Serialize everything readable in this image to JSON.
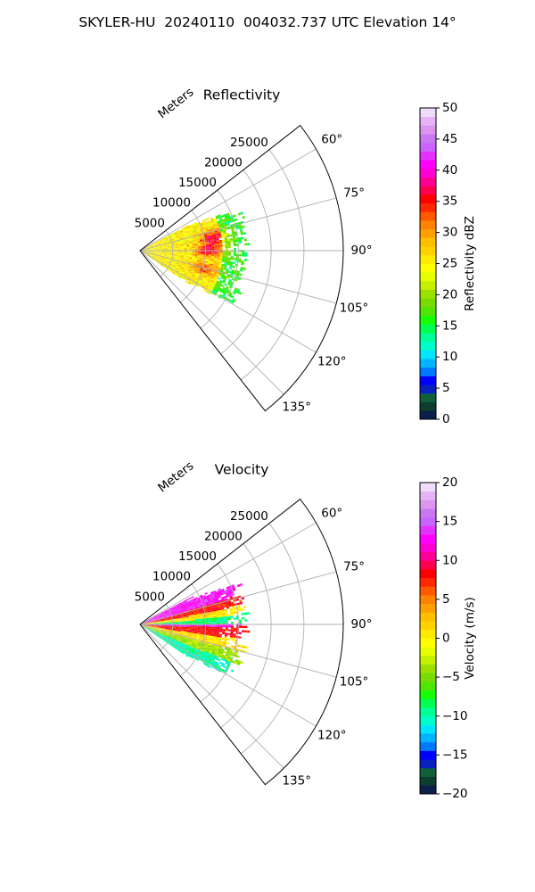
{
  "figure": {
    "title": "SKYLER-HU  20240110  004032.737 UTC Elevation 14°"
  },
  "chart_data": [
    {
      "type": "heatmap",
      "projection": "polar-sector",
      "title": "Reflectivity",
      "r_label": "Meters",
      "r_ticks": [
        5000,
        10000,
        15000,
        20000,
        25000
      ],
      "r_tick_labels": [
        "5000",
        "10000",
        "15000",
        "20000",
        "25000"
      ],
      "rlim": [
        0,
        31000
      ],
      "theta_ticks": [
        60,
        75,
        90,
        105,
        120,
        135
      ],
      "theta_tick_labels": [
        "60°",
        "75°",
        "90°",
        "105°",
        "120°",
        "135°"
      ],
      "theta_range_deg": [
        52,
        142
      ],
      "grid": true,
      "colorbar": {
        "label": "Reflectivity dBZ",
        "range": [
          0,
          50
        ],
        "ticks": [
          0,
          5,
          10,
          15,
          20,
          25,
          30,
          35,
          40,
          45,
          50
        ],
        "tick_labels": [
          "0",
          "5",
          "10",
          "15",
          "20",
          "25",
          "30",
          "35",
          "40",
          "45",
          "50"
        ],
        "colors": [
          "#0a1f4a",
          "#0c3d2e",
          "#11603a",
          "#0a1fbf",
          "#0000ff",
          "#0078ff",
          "#00b4ff",
          "#00e5ff",
          "#00ffc8",
          "#00ff96",
          "#00ff50",
          "#14ff00",
          "#50e600",
          "#78dc00",
          "#9be100",
          "#c3f000",
          "#e6ff00",
          "#ffff00",
          "#ffeb00",
          "#ffd200",
          "#ffbe00",
          "#ffa000",
          "#ff8200",
          "#ff5a00",
          "#ff2800",
          "#ff0000",
          "#ff0050",
          "#ff0096",
          "#ff00d2",
          "#ff00ff",
          "#e632ff",
          "#c864ff",
          "#c878f0",
          "#dc96f0",
          "#e6b4f5",
          "#f0dcfa"
        ]
      },
      "field_summary": {
        "data_sector_deg": [
          62,
          124
        ],
        "max_range_m": 16000,
        "background_dbz": 25,
        "outer_band_dbz": 16,
        "cores": [
          {
            "theta_deg": 80,
            "r_m": 11500,
            "dbz": 37
          },
          {
            "theta_deg": 90,
            "r_m": 10500,
            "dbz": 37
          },
          {
            "theta_deg": 106,
            "r_m": 10000,
            "dbz": 33
          }
        ]
      }
    },
    {
      "type": "heatmap",
      "projection": "polar-sector",
      "title": "Velocity",
      "r_label": "Meters",
      "r_ticks": [
        5000,
        10000,
        15000,
        20000,
        25000
      ],
      "r_tick_labels": [
        "5000",
        "10000",
        "15000",
        "20000",
        "25000"
      ],
      "rlim": [
        0,
        31000
      ],
      "theta_ticks": [
        60,
        75,
        90,
        105,
        120,
        135
      ],
      "theta_tick_labels": [
        "60°",
        "75°",
        "90°",
        "105°",
        "120°",
        "135°"
      ],
      "theta_range_deg": [
        52,
        142
      ],
      "grid": true,
      "colorbar": {
        "label": "Velocity (m/s)",
        "range": [
          -20,
          20
        ],
        "ticks": [
          -20,
          -15,
          -10,
          -5,
          0,
          5,
          10,
          15,
          20
        ],
        "tick_labels": [
          "−20",
          "−15",
          "−10",
          "−5",
          "0",
          "5",
          "10",
          "15",
          "20"
        ],
        "colors": [
          "#0a1f4a",
          "#0c3d2e",
          "#11603a",
          "#0a1fbf",
          "#0000ff",
          "#0078ff",
          "#00b4ff",
          "#00e5ff",
          "#00ffc8",
          "#00ff96",
          "#00ff50",
          "#14ff00",
          "#50e600",
          "#78dc00",
          "#9be100",
          "#c3f000",
          "#e6ff00",
          "#ffff00",
          "#ffeb00",
          "#ffd200",
          "#ffbe00",
          "#ffa000",
          "#ff8200",
          "#ff5a00",
          "#ff2800",
          "#ff0000",
          "#ff0050",
          "#ff0096",
          "#ff00d2",
          "#ff00ff",
          "#e632ff",
          "#c864ff",
          "#c878f0",
          "#dc96f0",
          "#e6b4f5",
          "#f0dcfa"
        ]
      },
      "field_summary": {
        "data_sector_deg": [
          62,
          124
        ],
        "max_range_m": 16000,
        "bands": [
          {
            "theta_deg": [
              62,
              76
            ],
            "ms": 13
          },
          {
            "theta_deg": [
              76,
              82
            ],
            "ms": 8
          },
          {
            "theta_deg": [
              82,
              87
            ],
            "ms": 1
          },
          {
            "theta_deg": [
              87,
              92
            ],
            "ms": -9
          },
          {
            "theta_deg": [
              92,
              94
            ],
            "ms": 13
          },
          {
            "theta_deg": [
              94,
              101
            ],
            "ms": 8
          },
          {
            "theta_deg": [
              101,
              108
            ],
            "ms": 1
          },
          {
            "theta_deg": [
              108,
              115
            ],
            "ms": -4
          },
          {
            "theta_deg": [
              115,
              124
            ],
            "ms": -10
          }
        ]
      }
    }
  ]
}
